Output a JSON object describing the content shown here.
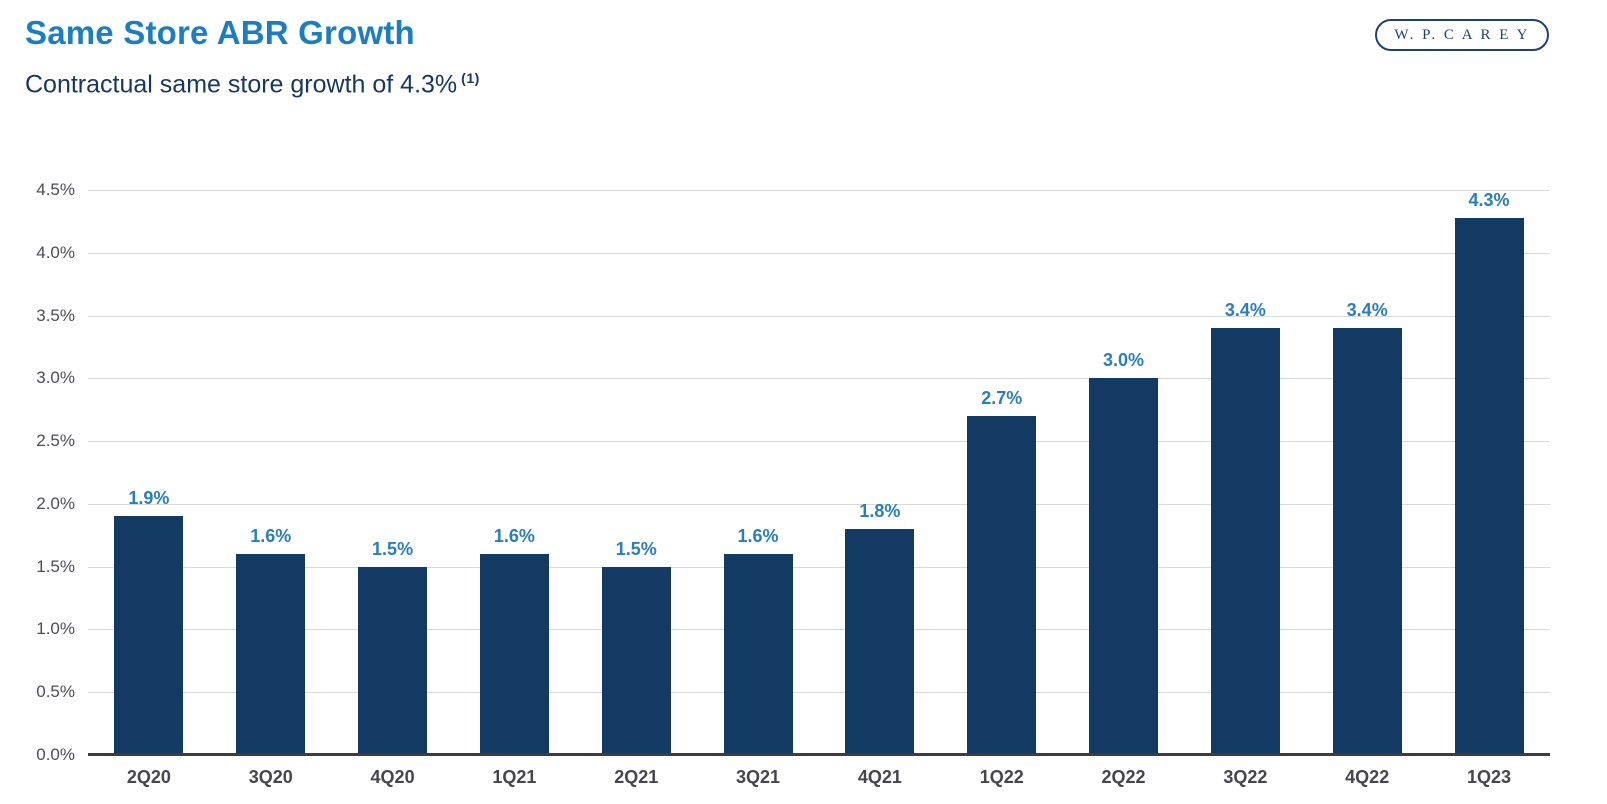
{
  "header": {
    "title": "Same Store ABR Growth",
    "subtitle": "Contractual same store growth of 4.3%",
    "footnote_marker": "(1)",
    "logo_text": "W. P. C A R E Y"
  },
  "colors": {
    "title_blue": "#1B7EC4",
    "subtitle_navy": "#17375F",
    "bar_navy": "#133A63",
    "data_label_blue": "#2A7DC1",
    "gridline_gray": "#D9D9D9",
    "baseline_gray": "#3D3D41",
    "axis_text_gray": "#4D4D55",
    "logo_navy": "#1E4170"
  },
  "chart_data": {
    "type": "bar",
    "title": "Same Store ABR Growth",
    "xlabel": "",
    "ylabel": "",
    "categories": [
      "2Q20",
      "3Q20",
      "4Q20",
      "1Q21",
      "2Q21",
      "3Q21",
      "4Q21",
      "1Q22",
      "2Q22",
      "3Q22",
      "4Q22",
      "1Q23"
    ],
    "values": [
      1.9,
      1.6,
      1.5,
      1.6,
      1.5,
      1.6,
      1.8,
      2.7,
      3.0,
      3.4,
      3.4,
      4.3
    ],
    "bar_labels": [
      "1.9%",
      "1.6%",
      "1.5%",
      "1.6%",
      "1.5%",
      "1.6%",
      "1.8%",
      "2.7%",
      "3.0%",
      "3.4%",
      "3.4%",
      "4.3%"
    ],
    "y_ticks": [
      "4.5%",
      "4.0%",
      "3.5%",
      "3.0%",
      "2.5%",
      "2.0%",
      "1.5%",
      "1.0%",
      "0.5%",
      "0.0%"
    ],
    "ylim": [
      0,
      4.5
    ],
    "grid": true,
    "legend": false
  }
}
